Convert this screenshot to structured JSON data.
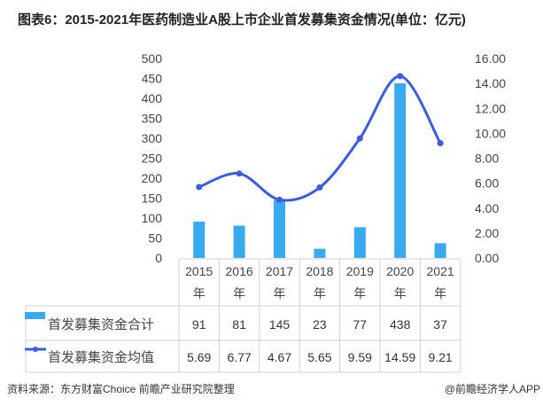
{
  "chart_data": {
    "type": "bar+line",
    "title": "图表6：2015-2021年医药制造业A股上市企业首发募集资金情况(单位：亿元)",
    "categories": [
      "2015年",
      "2016年",
      "2017年",
      "2018年",
      "2019年",
      "2020年",
      "2021年"
    ],
    "series": [
      {
        "name": "首发募集资金合计",
        "type": "bar",
        "axis": "left",
        "color": "#3aaaf0",
        "values": [
          91,
          81,
          145,
          23,
          77,
          438,
          37
        ],
        "labels": [
          "91",
          "81",
          "145",
          "23",
          "77",
          "438",
          "37"
        ]
      },
      {
        "name": "首发募集资金均值",
        "type": "line",
        "axis": "right",
        "color": "#3a5ce0",
        "values": [
          5.69,
          6.77,
          4.67,
          5.65,
          9.59,
          14.59,
          9.21
        ],
        "labels": [
          "5.69",
          "6.77",
          "4.67",
          "5.65",
          "9.59",
          "14.59",
          "9.21"
        ]
      }
    ],
    "left_axis": {
      "min": 0,
      "max": 500,
      "step": 50,
      "ticks": [
        "0",
        "50",
        "100",
        "150",
        "200",
        "250",
        "300",
        "350",
        "400",
        "450",
        "500"
      ]
    },
    "right_axis": {
      "min": 0,
      "max": 16,
      "step": 2,
      "ticks": [
        "0.00",
        "2.00",
        "4.00",
        "6.00",
        "8.00",
        "10.00",
        "12.00",
        "14.00",
        "16.00"
      ]
    },
    "grid": false,
    "legend": "data-table"
  },
  "footer": {
    "source": "资料来源：东方财富Choice 前瞻产业研究院整理",
    "brand": "@前瞻经济学人APP"
  }
}
